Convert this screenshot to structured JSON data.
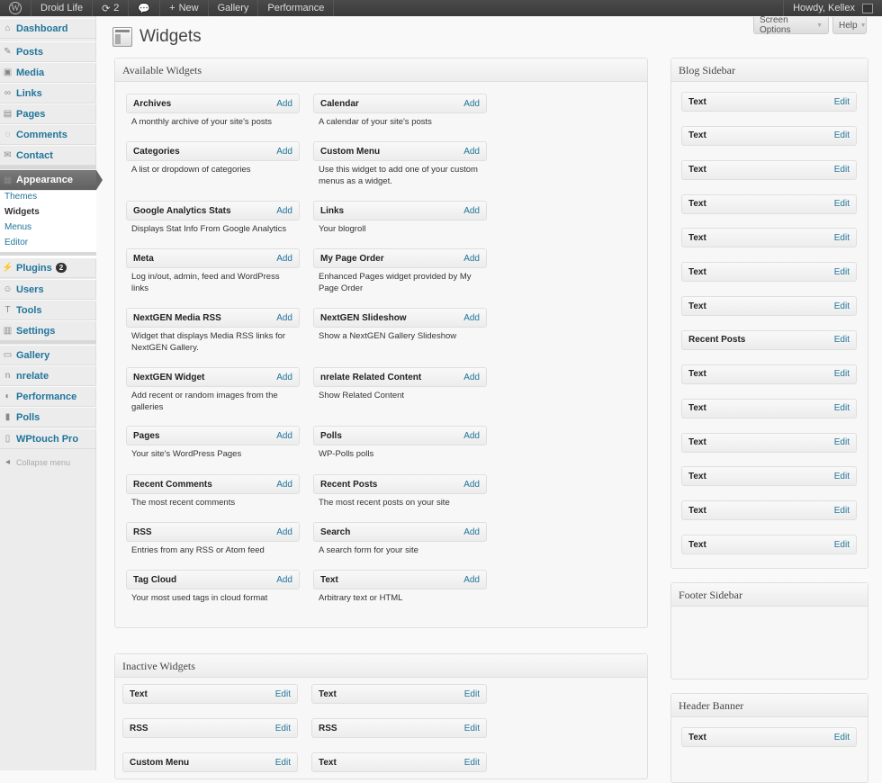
{
  "adminbar": {
    "site": "Droid Life",
    "updates": "2",
    "new": "New",
    "gallery": "Gallery",
    "performance": "Performance",
    "howdy": "Howdy, Kellex"
  },
  "menu": [
    {
      "label": "Dashboard",
      "icon": "home-icon"
    },
    {
      "label": "Posts",
      "icon": "pin-icon"
    },
    {
      "label": "Media",
      "icon": "media-icon"
    },
    {
      "label": "Links",
      "icon": "link-icon"
    },
    {
      "label": "Pages",
      "icon": "page-icon"
    },
    {
      "label": "Comments",
      "icon": "comment-icon"
    },
    {
      "label": "Contact",
      "icon": "contact-icon"
    },
    {
      "label": "Appearance",
      "icon": "appearance-icon",
      "active": true
    },
    {
      "label": "Plugins",
      "icon": "plug-icon",
      "badge": "2"
    },
    {
      "label": "Users",
      "icon": "users-icon"
    },
    {
      "label": "Tools",
      "icon": "tools-icon"
    },
    {
      "label": "Settings",
      "icon": "settings-icon"
    },
    {
      "label": "Gallery",
      "icon": "gallery-icon"
    },
    {
      "label": "nrelate",
      "icon": "nrelate-icon"
    },
    {
      "label": "Performance",
      "icon": "performance-icon"
    },
    {
      "label": "Polls",
      "icon": "polls-icon"
    },
    {
      "label": "WPtouch Pro",
      "icon": "phone-icon"
    }
  ],
  "submenu": [
    {
      "label": "Themes"
    },
    {
      "label": "Widgets",
      "current": true
    },
    {
      "label": "Menus"
    },
    {
      "label": "Editor"
    }
  ],
  "collapse": "Collapse menu",
  "page": {
    "title": "Widgets",
    "screen_options": "Screen Options",
    "help": "Help"
  },
  "available": {
    "title": "Available Widgets",
    "add": "Add",
    "widgets": [
      {
        "name": "Archives",
        "desc": "A monthly archive of your site's posts"
      },
      {
        "name": "Calendar",
        "desc": "A calendar of your site's posts"
      },
      {
        "name": "Categories",
        "desc": "A list or dropdown of categories"
      },
      {
        "name": "Custom Menu",
        "desc": "Use this widget to add one of your custom menus as a widget."
      },
      {
        "name": "Google Analytics Stats",
        "desc": "Displays Stat Info From Google Analytics"
      },
      {
        "name": "Links",
        "desc": "Your blogroll"
      },
      {
        "name": "Meta",
        "desc": "Log in/out, admin, feed and WordPress links"
      },
      {
        "name": "My Page Order",
        "desc": "Enhanced Pages widget provided by My Page Order"
      },
      {
        "name": "NextGEN Media RSS",
        "desc": "Widget that displays Media RSS links for NextGEN Gallery."
      },
      {
        "name": "NextGEN Slideshow",
        "desc": "Show a NextGEN Gallery Slideshow"
      },
      {
        "name": "NextGEN Widget",
        "desc": "Add recent or random images from the galleries"
      },
      {
        "name": "nrelate Related Content",
        "desc": "Show Related Content"
      },
      {
        "name": "Pages",
        "desc": "Your site's WordPress Pages"
      },
      {
        "name": "Polls",
        "desc": "WP-Polls polls"
      },
      {
        "name": "Recent Comments",
        "desc": "The most recent comments"
      },
      {
        "name": "Recent Posts",
        "desc": "The most recent posts on your site"
      },
      {
        "name": "RSS",
        "desc": "Entries from any RSS or Atom feed"
      },
      {
        "name": "Search",
        "desc": "A search form for your site"
      },
      {
        "name": "Tag Cloud",
        "desc": "Your most used tags in cloud format"
      },
      {
        "name": "Text",
        "desc": "Arbitrary text or HTML"
      }
    ]
  },
  "inactive": {
    "title": "Inactive Widgets",
    "edit": "Edit",
    "widgets": [
      "Text",
      "Text",
      "RSS",
      "RSS",
      "Custom Menu",
      "Text"
    ]
  },
  "sidebars": [
    {
      "title": "Blog Sidebar",
      "edit": "Edit",
      "widgets": [
        "Text",
        "Text",
        "Text",
        "Text",
        "Text",
        "Text",
        "Text",
        "Recent Posts",
        "Text",
        "Text",
        "Text",
        "Text",
        "Text",
        "Text"
      ]
    },
    {
      "title": "Footer Sidebar",
      "edit": "Edit",
      "widgets": []
    },
    {
      "title": "Header Banner",
      "edit": "Edit",
      "widgets": [
        "Text"
      ]
    }
  ]
}
